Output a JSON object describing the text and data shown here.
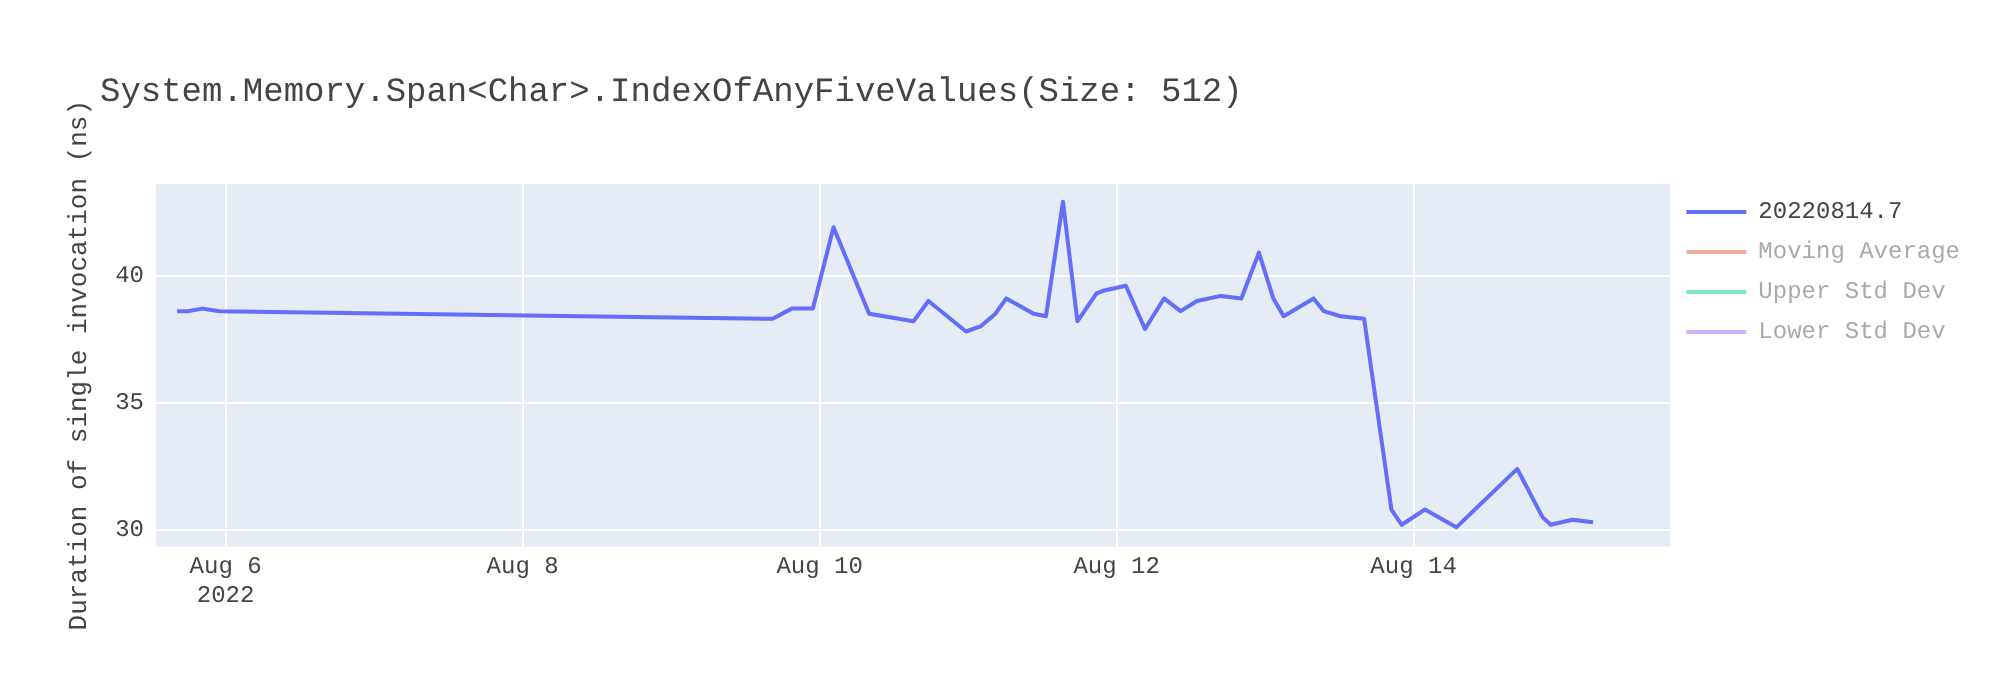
{
  "chart_data": {
    "type": "line",
    "title": "System.Memory.Span<Char>.IndexOfAnyFiveValues(Size: 512)",
    "ylabel": "Duration of single invocation (ns)",
    "x": [
      "2022-08-05T16:10",
      "2022-08-05T17:50",
      "2022-08-05T20:15",
      "2022-08-05T23:00",
      "2022-08-09T16:25",
      "2022-08-09T19:30",
      "2022-08-09T22:55",
      "2022-08-10T02:15",
      "2022-08-10T08:00",
      "2022-08-10T15:10",
      "2022-08-10T17:35",
      "2022-08-10T23:40",
      "2022-08-11T02:00",
      "2022-08-11T04:25",
      "2022-08-11T06:10",
      "2022-08-11T10:35",
      "2022-08-11T12:35",
      "2022-08-11T15:20",
      "2022-08-11T17:40",
      "2022-08-11T20:45",
      "2022-08-11T21:50",
      "2022-08-12T01:30",
      "2022-08-12T04:35",
      "2022-08-12T07:40",
      "2022-08-12T10:20",
      "2022-08-12T13:00",
      "2022-08-12T16:50",
      "2022-08-12T20:10",
      "2022-08-12T23:00",
      "2022-08-13T01:20",
      "2022-08-13T03:00",
      "2022-08-13T07:50",
      "2022-08-13T09:30",
      "2022-08-13T12:10",
      "2022-08-13T16:00",
      "2022-08-13T20:25",
      "2022-08-13T22:05",
      "2022-08-14T01:50",
      "2022-08-14T06:55",
      "2022-08-14T16:45",
      "2022-08-14T20:50",
      "2022-08-14T22:10",
      "2022-08-15T01:40",
      "2022-08-15T05:00"
    ],
    "series": [
      {
        "name": "20220814.7",
        "color": "#636efa",
        "values": [
          38.6,
          38.6,
          38.7,
          38.6,
          38.3,
          38.7,
          38.7,
          41.9,
          38.5,
          38.2,
          39.0,
          37.8,
          38.0,
          38.5,
          39.1,
          38.5,
          38.4,
          42.9,
          38.2,
          39.3,
          39.4,
          39.6,
          37.9,
          39.1,
          38.6,
          39.0,
          39.2,
          39.1,
          40.9,
          39.1,
          38.4,
          39.1,
          38.6,
          38.4,
          38.3,
          30.8,
          30.2,
          30.8,
          30.1,
          32.4,
          30.5,
          30.2,
          30.4,
          30.3
        ]
      },
      {
        "name": "Moving Average",
        "color": "#ef553b",
        "values": [
          null,
          null,
          null,
          null,
          null,
          null,
          null,
          null,
          null,
          null,
          null,
          null,
          null,
          null,
          null,
          null,
          null,
          null,
          null,
          null,
          null,
          null,
          null,
          null,
          null,
          null,
          null,
          null,
          null,
          null,
          null,
          null,
          null,
          null,
          null,
          null,
          null,
          null,
          null,
          null,
          null,
          null,
          null,
          null
        ]
      },
      {
        "name": "Upper Std Dev",
        "color": "#00cc96",
        "values": [
          null,
          null,
          null,
          null,
          null,
          null,
          null,
          null,
          null,
          null,
          null,
          null,
          null,
          null,
          null,
          null,
          null,
          null,
          null,
          null,
          null,
          null,
          null,
          null,
          null,
          null,
          null,
          null,
          null,
          null,
          null,
          null,
          null,
          null,
          null,
          null,
          null,
          null,
          null,
          null,
          null,
          null,
          null,
          null
        ]
      },
      {
        "name": "Lower Std Dev",
        "color": "#ab63fa",
        "values": [
          null,
          null,
          null,
          null,
          null,
          null,
          null,
          null,
          null,
          null,
          null,
          null,
          null,
          null,
          null,
          null,
          null,
          null,
          null,
          null,
          null,
          null,
          null,
          null,
          null,
          null,
          null,
          null,
          null,
          null,
          null,
          null,
          null,
          null,
          null,
          null,
          null,
          null,
          null,
          null,
          null,
          null,
          null,
          null
        ]
      }
    ],
    "xlim": [
      "2022-08-05T12:45",
      "2022-08-15T17:30"
    ],
    "xticks": [
      {
        "value": "2022-08-06",
        "label": "Aug 6\n2022"
      },
      {
        "value": "2022-08-08",
        "label": "Aug 8"
      },
      {
        "value": "2022-08-10",
        "label": "Aug 10"
      },
      {
        "value": "2022-08-12",
        "label": "Aug 12"
      },
      {
        "value": "2022-08-14",
        "label": "Aug 14"
      }
    ],
    "ylim": [
      29.35,
      43.6
    ],
    "yticks": [
      30,
      35,
      40
    ],
    "grid": true,
    "legend": "right",
    "marker": "none",
    "line_style": "solid"
  }
}
